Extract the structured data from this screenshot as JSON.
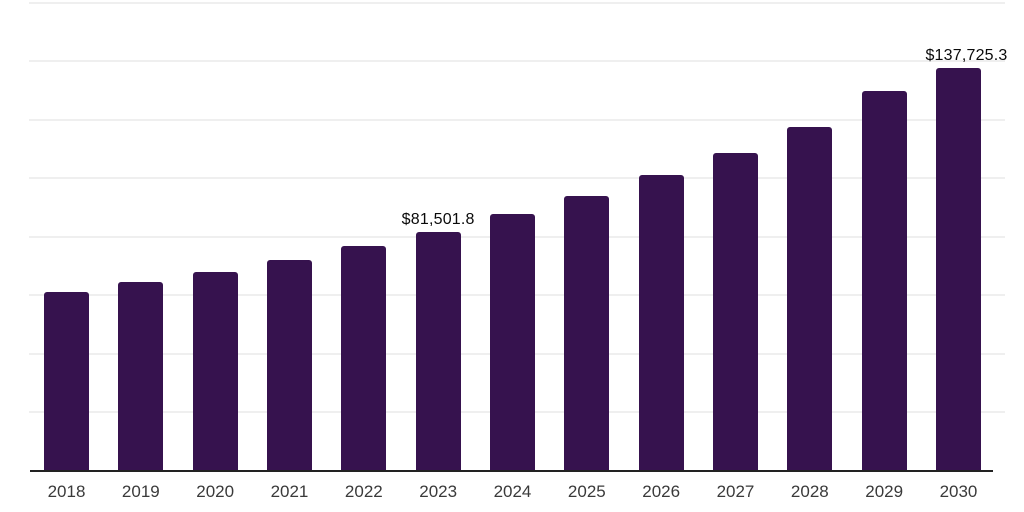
{
  "chart_data": {
    "type": "bar",
    "title": "",
    "xlabel": "",
    "ylabel": "",
    "categories": [
      "2018",
      "2019",
      "2020",
      "2021",
      "2022",
      "2023",
      "2024",
      "2025",
      "2026",
      "2027",
      "2028",
      "2029",
      "2030"
    ],
    "values": [
      61000,
      64300,
      67700,
      71800,
      76900,
      81501.8,
      87700,
      93800,
      101000,
      108700,
      117600,
      129700,
      137725.3
    ],
    "data_labels": {
      "2023": "$81,501.8",
      "2030": "$137,725.3"
    },
    "ylim": [
      0,
      160000
    ],
    "gridline_step": 20000,
    "grid": "horizontal-only",
    "legend": "none",
    "y_axis_ticks_visible": false,
    "colors": {
      "bar": "#36124e",
      "gridline": "#efefef",
      "axis_line": "#222222",
      "value_label": "#0a0a0a",
      "tick_label": "#3a3a3a",
      "background": "#ffffff"
    }
  }
}
